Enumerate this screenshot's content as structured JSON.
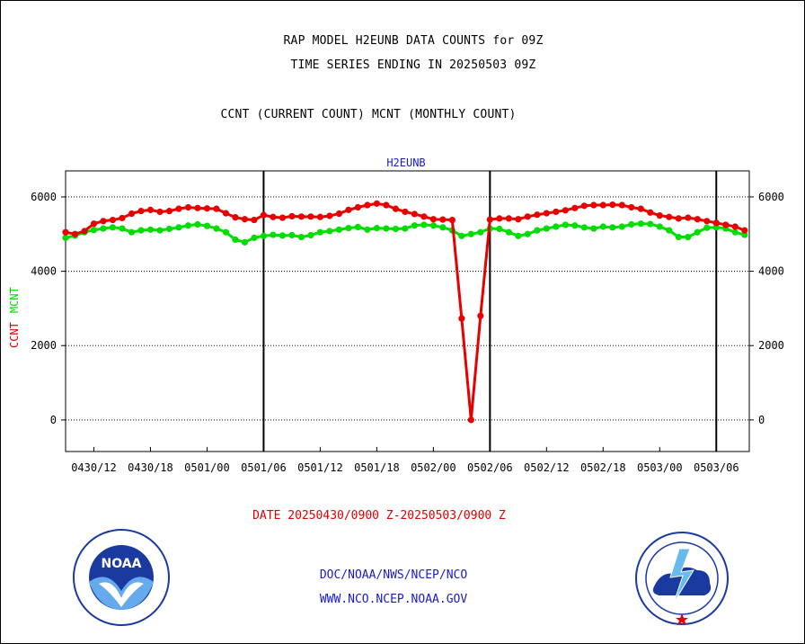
{
  "title_line1": "RAP MODEL H2EUNB DATA COUNTS for 09Z",
  "title_line2": "TIME SERIES ENDING IN 20250503 09Z",
  "title_line3": "CCNT (CURRENT COUNT) MCNT (MONTHLY COUNT)",
  "date_range": "DATE 20250430/0900 Z-20250503/0900 Z",
  "footer_line1": "DOC/NOAA/NWS/NCEP/NCO",
  "footer_line2": "WWW.NCO.NCEP.NOAA.GOV",
  "logo_left": "NOAA",
  "colors": {
    "ccnt": "#e80000",
    "mcnt": "#00dd00",
    "subtitle": "#1a1acc",
    "axis": "#000000"
  },
  "chart_data": {
    "type": "line",
    "title": "H2EUNB",
    "ylabel_parts": [
      {
        "text": "CCNT",
        "color": "#e80000"
      },
      {
        "text": "MCNT",
        "color": "#00dd00"
      }
    ],
    "ylim": [
      -850,
      6700
    ],
    "yticks": [
      0,
      2000,
      4000,
      6000
    ],
    "ytick_labels": [
      "0",
      "2000",
      "4000",
      "6000"
    ],
    "xlim": [
      0,
      72.5
    ],
    "xticks": [
      3,
      9,
      15,
      21,
      27,
      33,
      39,
      45,
      51,
      57,
      63,
      69
    ],
    "xtick_labels": [
      "0430/12",
      "0430/18",
      "0501/00",
      "0501/06",
      "0501/12",
      "0501/18",
      "0502/00",
      "0502/06",
      "0502/12",
      "0502/18",
      "0503/00",
      "0503/06"
    ],
    "day_dividers": [
      21,
      45,
      69
    ],
    "grid_y": true,
    "series": [
      {
        "name": "CCNT",
        "color": "#e80000",
        "values": [
          5050,
          5000,
          5080,
          5280,
          5350,
          5380,
          5430,
          5550,
          5620,
          5650,
          5600,
          5620,
          5680,
          5720,
          5700,
          5690,
          5680,
          5560,
          5450,
          5400,
          5380,
          5510,
          5460,
          5440,
          5480,
          5470,
          5470,
          5460,
          5490,
          5550,
          5650,
          5720,
          5780,
          5820,
          5780,
          5680,
          5600,
          5540,
          5470,
          5400,
          5390,
          5380,
          2730,
          0,
          2800,
          5390,
          5420,
          5420,
          5400,
          5470,
          5520,
          5560,
          5600,
          5640,
          5700,
          5760,
          5780,
          5780,
          5790,
          5780,
          5720,
          5680,
          5580,
          5500,
          5460,
          5420,
          5440,
          5400,
          5350,
          5300,
          5250,
          5200,
          5100
        ]
      },
      {
        "name": "MCNT",
        "color": "#00dd00",
        "values": [
          4900,
          4960,
          5050,
          5110,
          5150,
          5180,
          5150,
          5050,
          5100,
          5120,
          5100,
          5140,
          5180,
          5230,
          5260,
          5220,
          5150,
          5050,
          4850,
          4780,
          4900,
          4950,
          4980,
          4960,
          4970,
          4920,
          4970,
          5050,
          5080,
          5120,
          5160,
          5190,
          5120,
          5160,
          5150,
          5140,
          5150,
          5230,
          5250,
          5230,
          5180,
          5100,
          4950,
          5000,
          5050,
          5150,
          5140,
          5050,
          4950,
          5000,
          5100,
          5150,
          5200,
          5250,
          5230,
          5180,
          5150,
          5200,
          5180,
          5200,
          5260,
          5280,
          5270,
          5200,
          5100,
          4920,
          4920,
          5050,
          5170,
          5180,
          5150,
          5050,
          4980
        ]
      }
    ]
  }
}
